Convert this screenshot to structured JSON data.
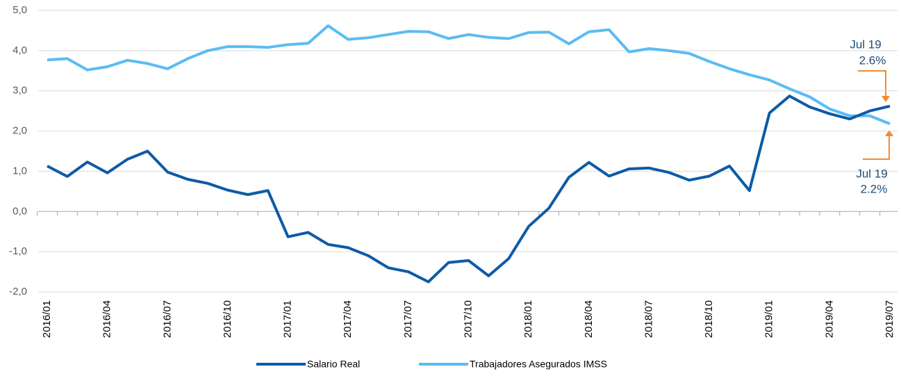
{
  "chart_data": {
    "type": "line",
    "categories": [
      "2016/01",
      null,
      null,
      "2016/04",
      null,
      null,
      "2016/07",
      null,
      null,
      "2016/10",
      null,
      null,
      "2017/01",
      null,
      null,
      "2017/04",
      null,
      null,
      "2017/07",
      null,
      null,
      "2017/10",
      null,
      null,
      "2018/01",
      null,
      null,
      "2018/04",
      null,
      null,
      "2018/07",
      null,
      null,
      "2018/10",
      null,
      null,
      "2019/01",
      null,
      null,
      "2019/04",
      null,
      null,
      "2019/07"
    ],
    "series": [
      {
        "name": "Salario Real",
        "color": "#0e5aa7",
        "values": [
          1.13,
          0.87,
          1.23,
          0.96,
          1.3,
          1.5,
          0.98,
          0.8,
          0.7,
          0.53,
          0.42,
          0.52,
          -0.63,
          -0.52,
          -0.82,
          -0.9,
          -1.1,
          -1.4,
          -1.5,
          -1.75,
          -1.27,
          -1.22,
          -1.6,
          -1.17,
          -0.37,
          0.08,
          0.85,
          1.22,
          0.88,
          1.06,
          1.08,
          0.97,
          0.78,
          0.88,
          1.13,
          0.52,
          2.45,
          2.87,
          2.6,
          2.43,
          2.3,
          2.5,
          2.62
        ]
      },
      {
        "name": "Trabajadores Asegurados IMSS",
        "color": "#5bbcf2",
        "values": [
          3.77,
          3.8,
          3.52,
          3.6,
          3.76,
          3.68,
          3.55,
          3.8,
          4.0,
          4.1,
          4.1,
          4.08,
          4.15,
          4.18,
          4.62,
          4.28,
          4.32,
          4.4,
          4.48,
          4.47,
          4.3,
          4.4,
          4.33,
          4.3,
          4.45,
          4.46,
          4.17,
          4.47,
          4.52,
          3.97,
          4.05,
          4.0,
          3.93,
          3.73,
          3.55,
          3.4,
          3.27,
          3.05,
          2.85,
          2.55,
          2.38,
          2.38,
          2.18
        ]
      }
    ],
    "ylim": [
      -2,
      5
    ],
    "yticks": [
      {
        "value": -2,
        "label": "-2,0"
      },
      {
        "value": -1,
        "label": "-1,0"
      },
      {
        "value": 0,
        "label": "0,0"
      },
      {
        "value": 1,
        "label": "1,0"
      },
      {
        "value": 2,
        "label": "2,0"
      },
      {
        "value": 3,
        "label": "3,0"
      },
      {
        "value": 4,
        "label": "4,0"
      },
      {
        "value": 5,
        "label": "5,0"
      }
    ],
    "grid": true,
    "legend": "bottom",
    "annotations": [
      {
        "lines": [
          "Jul 19",
          "2.6%"
        ]
      },
      {
        "lines": [
          "Jul 19",
          "2.2%"
        ]
      }
    ]
  }
}
